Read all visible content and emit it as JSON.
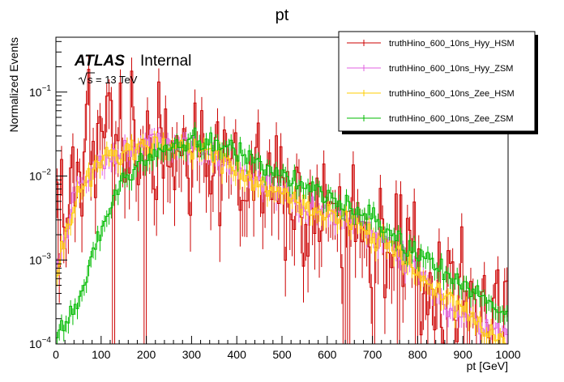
{
  "chart_data": {
    "type": "line",
    "title": "pt",
    "xlabel": "pt [GeV]",
    "ylabel": "Normalized Events",
    "xlim": [
      0,
      1000
    ],
    "ylim": [
      0.0001,
      0.45
    ],
    "yscale": "log",
    "x_ticks": [
      "0",
      "100",
      "200",
      "300",
      "400",
      "500",
      "600",
      "700",
      "800",
      "900",
      "1000"
    ],
    "y_ticks": [
      {
        "base": "10",
        "exp": "−4",
        "value": 0.0001
      },
      {
        "base": "10",
        "exp": "−3",
        "value": 0.001
      },
      {
        "base": "10",
        "exp": "−2",
        "value": 0.01
      },
      {
        "base": "10",
        "exp": "−1",
        "value": 0.1
      }
    ],
    "annotation": {
      "atlas": "ATLAS",
      "status": "Internal",
      "energy_root": "s",
      "energy_value": "= 13 TeV"
    },
    "legend_position": "top-right",
    "series": [
      {
        "name": "truthHino_600_10ns_Hyy_HSM",
        "color": "#cc0000",
        "anchors": [
          [
            0,
            0.0022
          ],
          [
            10,
            0.006
          ],
          [
            30,
            0.01
          ],
          [
            60,
            0.02
          ],
          [
            100,
            0.03
          ],
          [
            150,
            0.035
          ],
          [
            200,
            0.03
          ],
          [
            250,
            0.024
          ],
          [
            300,
            0.02
          ],
          [
            350,
            0.016
          ],
          [
            400,
            0.012
          ],
          [
            450,
            0.009
          ],
          [
            500,
            0.006
          ],
          [
            550,
            0.004
          ],
          [
            600,
            0.0035
          ],
          [
            650,
            0.0025
          ],
          [
            700,
            0.0018
          ],
          [
            750,
            0.0012
          ],
          [
            800,
            0.0008
          ],
          [
            850,
            0.0005
          ],
          [
            900,
            0.0004
          ],
          [
            950,
            0.0003
          ],
          [
            1000,
            0.0002
          ]
        ],
        "scatter": 0.7,
        "zero_prob": 0.09
      },
      {
        "name": "truthHino_600_10ns_Hyy_ZSM",
        "color": "#e060e0",
        "anchors": [
          [
            0,
            0.0007
          ],
          [
            10,
            0.0012
          ],
          [
            30,
            0.0035
          ],
          [
            60,
            0.009
          ],
          [
            100,
            0.015
          ],
          [
            150,
            0.02
          ],
          [
            200,
            0.025
          ],
          [
            250,
            0.024
          ],
          [
            300,
            0.022
          ],
          [
            350,
            0.018
          ],
          [
            400,
            0.012
          ],
          [
            450,
            0.009
          ],
          [
            500,
            0.007
          ],
          [
            550,
            0.004
          ],
          [
            600,
            0.004
          ],
          [
            650,
            0.003
          ],
          [
            700,
            0.0022
          ],
          [
            750,
            0.0013
          ],
          [
            800,
            0.0007
          ],
          [
            850,
            0.0004
          ],
          [
            900,
            0.0002
          ],
          [
            950,
            0.00015
          ],
          [
            1000,
            0.00012
          ]
        ],
        "scatter": 0.12,
        "zero_prob": 0.0
      },
      {
        "name": "truthHino_600_10ns_Zee_HSM",
        "color": "#ffcc00",
        "anchors": [
          [
            0,
            0.0005
          ],
          [
            10,
            0.0013
          ],
          [
            30,
            0.003
          ],
          [
            60,
            0.008
          ],
          [
            100,
            0.014
          ],
          [
            150,
            0.02
          ],
          [
            200,
            0.024
          ],
          [
            250,
            0.023
          ],
          [
            300,
            0.022
          ],
          [
            350,
            0.018
          ],
          [
            400,
            0.011
          ],
          [
            450,
            0.008
          ],
          [
            500,
            0.006
          ],
          [
            550,
            0.0045
          ],
          [
            600,
            0.004
          ],
          [
            650,
            0.003
          ],
          [
            700,
            0.002
          ],
          [
            750,
            0.0013
          ],
          [
            800,
            0.0007
          ],
          [
            850,
            0.0004
          ],
          [
            900,
            0.00025
          ],
          [
            950,
            0.00015
          ],
          [
            1000,
            0.0001
          ]
        ],
        "scatter": 0.12,
        "zero_prob": 0.0
      },
      {
        "name": "truthHino_600_10ns_Zee_ZSM",
        "color": "#00bb00",
        "anchors": [
          [
            0,
            0.00012
          ],
          [
            30,
            0.0002
          ],
          [
            60,
            0.0005
          ],
          [
            100,
            0.0025
          ],
          [
            150,
            0.009
          ],
          [
            200,
            0.016
          ],
          [
            250,
            0.022
          ],
          [
            300,
            0.026
          ],
          [
            350,
            0.025
          ],
          [
            400,
            0.02
          ],
          [
            450,
            0.015
          ],
          [
            500,
            0.011
          ],
          [
            550,
            0.008
          ],
          [
            600,
            0.006
          ],
          [
            650,
            0.0045
          ],
          [
            700,
            0.0035
          ],
          [
            750,
            0.002
          ],
          [
            800,
            0.0013
          ],
          [
            850,
            0.0008
          ],
          [
            900,
            0.0005
          ],
          [
            950,
            0.00035
          ],
          [
            1000,
            0.0002
          ]
        ],
        "scatter": 0.1,
        "zero_prob": 0.0
      }
    ]
  }
}
